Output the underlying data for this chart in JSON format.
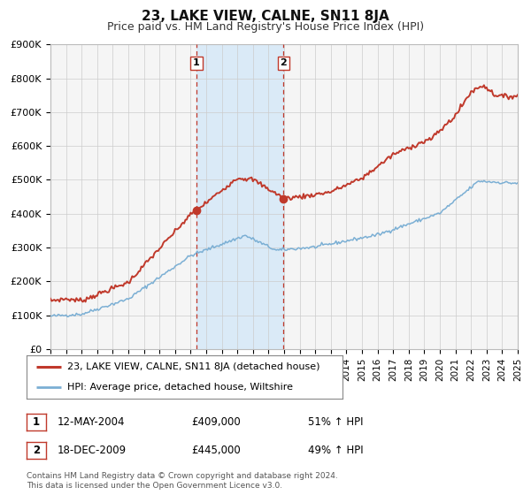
{
  "title": "23, LAKE VIEW, CALNE, SN11 8JA",
  "subtitle": "Price paid vs. HM Land Registry's House Price Index (HPI)",
  "ytick_labels": [
    "£0",
    "£100K",
    "£200K",
    "£300K",
    "£400K",
    "£500K",
    "£600K",
    "£700K",
    "£800K",
    "£900K"
  ],
  "yticks": [
    0,
    100000,
    200000,
    300000,
    400000,
    500000,
    600000,
    700000,
    800000,
    900000
  ],
  "hpi_color": "#7bafd4",
  "price_color": "#c0392b",
  "sale1_date_label": "12-MAY-2004",
  "sale1_price": 409000,
  "sale1_price_label": "£409,000",
  "sale1_hpi_label": "51% ↑ HPI",
  "sale1_x": 2004.37,
  "sale2_date_label": "18-DEC-2009",
  "sale2_price": 445000,
  "sale2_price_label": "£445,000",
  "sale2_hpi_label": "49% ↑ HPI",
  "sale2_x": 2009.96,
  "vline_color": "#c0392b",
  "shade_color": "#daeaf7",
  "legend_label_price": "23, LAKE VIEW, CALNE, SN11 8JA (detached house)",
  "legend_label_hpi": "HPI: Average price, detached house, Wiltshire",
  "footnote1": "Contains HM Land Registry data © Crown copyright and database right 2024.",
  "footnote2": "This data is licensed under the Open Government Licence v3.0.",
  "bg_color": "#f5f5f5",
  "grid_color": "#cccccc",
  "title_fontsize": 11,
  "subtitle_fontsize": 9,
  "tick_fontsize": 8,
  "legend_fontsize": 8,
  "table_fontsize": 8.5,
  "footnote_fontsize": 6.5
}
